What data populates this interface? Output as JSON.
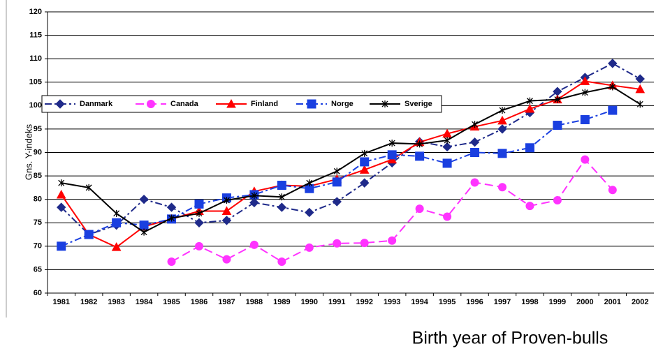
{
  "chart_data": {
    "type": "line",
    "x_label": "Birth year of Proven-bulls",
    "y_label": "Gns. Y-indeks",
    "categories": [
      "1981",
      "1982",
      "1983",
      "1984",
      "1985",
      "1986",
      "1987",
      "1988",
      "1989",
      "1990",
      "1991",
      "1992",
      "1993",
      "1994",
      "1995",
      "1996",
      "1997",
      "1998",
      "1999",
      "2000",
      "2001",
      "2002"
    ],
    "ylim": [
      60,
      120
    ],
    "yticks": [
      60,
      65,
      70,
      75,
      80,
      85,
      90,
      95,
      100,
      105,
      110,
      115,
      120
    ],
    "grid": true,
    "legend": "top-left",
    "series": [
      {
        "name": "Danmark",
        "color": "#1f2a8a",
        "marker": "diamond",
        "dash": "dashdot",
        "values": [
          78.3,
          72.5,
          74.5,
          80,
          78.3,
          75,
          75.5,
          79.3,
          78.3,
          77.2,
          79.5,
          83.5,
          87.8,
          92.3,
          91.2,
          92.2,
          95,
          98.5,
          103,
          106,
          109,
          105.7
        ]
      },
      {
        "name": "Canada",
        "color": "#ff33ff",
        "marker": "circle",
        "dash": "dash",
        "values": [
          null,
          null,
          null,
          null,
          66.7,
          70,
          67.2,
          70.3,
          66.7,
          69.7,
          70.6,
          70.7,
          71.2,
          78,
          76.3,
          83.6,
          82.6,
          78.6,
          79.8,
          88.5,
          82,
          null
        ]
      },
      {
        "name": "Finland",
        "color": "#ff0000",
        "marker": "triangle",
        "dash": "solid",
        "values": [
          81,
          72.5,
          69.8,
          74.2,
          75.8,
          77.5,
          77.5,
          81.7,
          83,
          82.8,
          84.3,
          86.3,
          88.5,
          92.2,
          94,
          95.5,
          96.8,
          99.3,
          101.3,
          105.2,
          104.3,
          103.5
        ]
      },
      {
        "name": "Norge",
        "color": "#1a3fe0",
        "marker": "square",
        "dash": "dashdot",
        "values": [
          70,
          72.5,
          75,
          74.5,
          75.8,
          79,
          80.3,
          81,
          83,
          82.3,
          83.7,
          88,
          89.5,
          89.2,
          87.7,
          90,
          89.8,
          91,
          95.8,
          97,
          99,
          null
        ]
      },
      {
        "name": "Sverige",
        "color": "#000000",
        "marker": "star",
        "dash": "solid",
        "values": [
          83.5,
          82.5,
          77,
          73,
          76,
          77,
          79.8,
          80.8,
          80.5,
          83.5,
          86,
          89.8,
          92,
          91.8,
          92.6,
          96,
          99,
          101,
          101.3,
          102.8,
          104,
          100.3
        ]
      }
    ]
  }
}
